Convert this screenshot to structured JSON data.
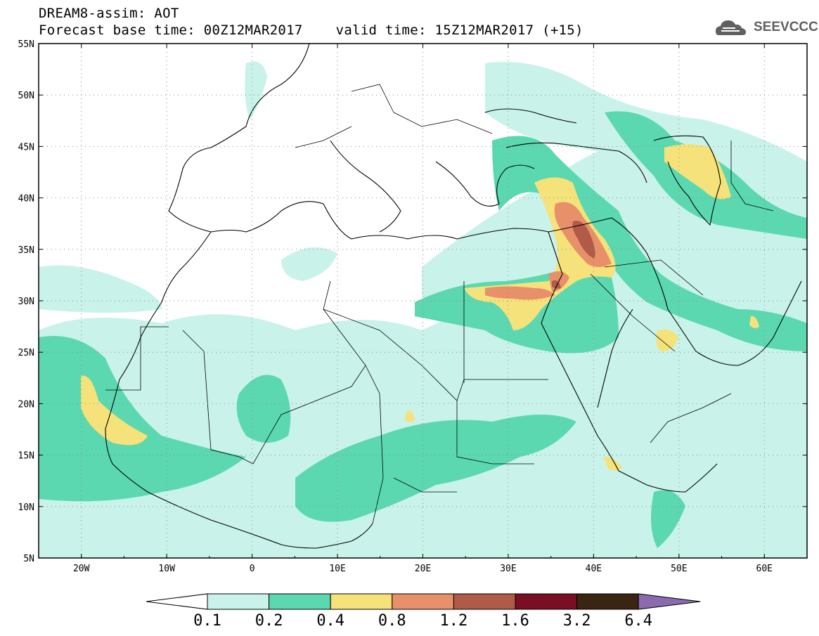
{
  "header": {
    "line1": "DREAM8-assim: AOT",
    "line2": "Forecast base time: 00Z12MAR2017    valid time: 15Z12MAR2017 (+15)"
  },
  "logo": {
    "text": "SEEVCCC",
    "icon": "cloud-icon"
  },
  "map": {
    "lat_labels": [
      "55N",
      "50N",
      "45N",
      "40N",
      "35N",
      "30N",
      "25N",
      "20N",
      "15N",
      "10N",
      "5N"
    ],
    "lon_labels": [
      "20W",
      "10W",
      "0",
      "10E",
      "20E",
      "30E",
      "40E",
      "50E",
      "60E"
    ],
    "lon_range": [
      -25,
      65
    ],
    "lat_range": [
      5,
      55
    ]
  },
  "colorbar": {
    "labels": [
      "0.1",
      "0.2",
      "0.4",
      "0.8",
      "1.2",
      "1.6",
      "3.2",
      "6.4"
    ],
    "colors": [
      "#ffffff",
      "#c9f3ea",
      "#5cd8b0",
      "#f5e27a",
      "#e8906a",
      "#b05a48",
      "#7a0e22",
      "#3a2412",
      "#8a6bb0"
    ]
  },
  "fill_colors": {
    "level1": "#c9f3ea",
    "level2": "#5cd8b0",
    "level3": "#f5e27a",
    "level4": "#e8906a",
    "level5": "#b05a48"
  }
}
